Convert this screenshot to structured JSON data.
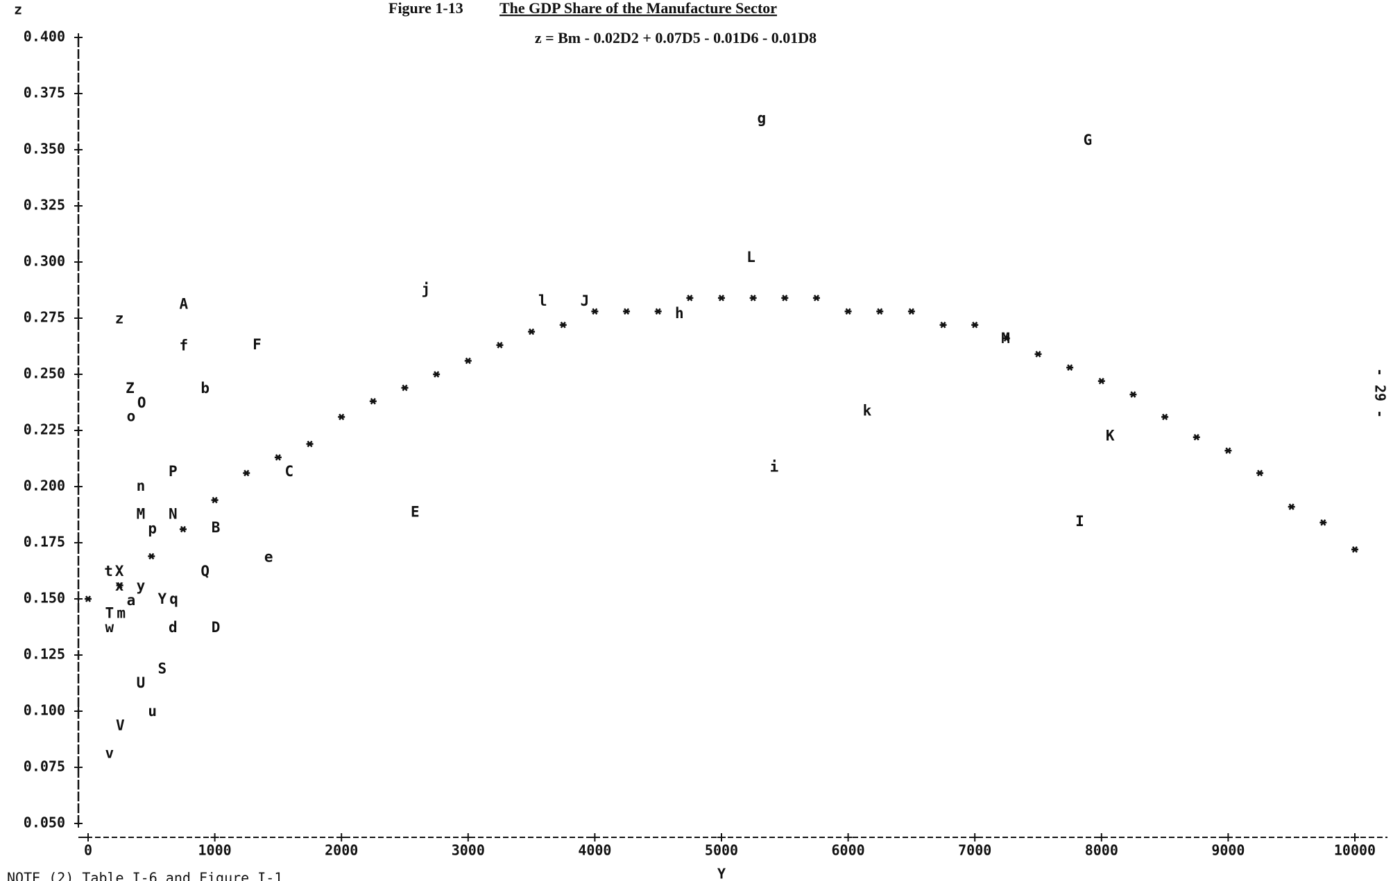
{
  "chart_data": {
    "type": "scatter",
    "figure_label": "Figure 1-13",
    "title": "The GDP Share of the Manufacture Sector",
    "subtitle": "z = Bm - 0.02D2 + 0.07D5 - 0.01D6 - 0.01D8",
    "ylabel": "z",
    "xlabel": "Y",
    "page_number": "- 29 -",
    "note": "NOTE (2) Table I-6 and Figure I-1",
    "xlim": [
      0,
      10000
    ],
    "xticks": [
      0,
      1000,
      2000,
      3000,
      4000,
      5000,
      6000,
      7000,
      8000,
      9000,
      10000
    ],
    "ylim": [
      0.05,
      0.4
    ],
    "yticks": [
      {
        "value": 0.05,
        "label": "0.050"
      },
      {
        "value": 0.075,
        "label": "0.075"
      },
      {
        "value": 0.1,
        "label": "0.100"
      },
      {
        "value": 0.125,
        "label": "0.125"
      },
      {
        "value": 0.15,
        "label": "0.150"
      },
      {
        "value": 0.175,
        "label": "0.175"
      },
      {
        "value": 0.2,
        "label": "0.200"
      },
      {
        "value": 0.225,
        "label": "0.225"
      },
      {
        "value": 0.25,
        "label": "0.250"
      },
      {
        "value": 0.275,
        "label": "0.275"
      },
      {
        "value": 0.3,
        "label": "0.300"
      },
      {
        "value": 0.325,
        "label": "0.325"
      },
      {
        "value": 0.35,
        "label": "0.350"
      },
      {
        "value": 0.375,
        "label": "0.375"
      },
      {
        "value": 0.4,
        "label": "0.400"
      }
    ],
    "points": {
      "labels": [
        "z",
        "A",
        "f",
        "F",
        "Z",
        "O",
        "b",
        "o",
        "P",
        "n",
        "M",
        "N",
        "p",
        "B",
        "Q",
        "t",
        "X",
        "x",
        "y",
        "a",
        "Y",
        "q",
        "T",
        "m",
        "w",
        "d",
        "D",
        "S",
        "U",
        "u",
        "V",
        "v",
        "e",
        "C",
        "E",
        "j",
        "l",
        "J",
        "h",
        "g",
        "L",
        "i",
        "k",
        "M",
        "G",
        "K",
        "I"
      ],
      "x": [
        247,
        755,
        755,
        1333,
        331,
        423,
        924,
        339,
        670,
        416,
        416,
        670,
        508,
        1008,
        924,
        162,
        247,
        247,
        416,
        339,
        585,
        677,
        169,
        261,
        169,
        670,
        1008,
        585,
        416,
        508,
        254,
        169,
        1425,
        1587,
        2581,
        2666,
        3589,
        3921,
        4668,
        5317,
        5233,
        5416,
        6150,
        7243,
        7891,
        8068,
        7828
      ],
      "y": [
        0.2745,
        0.281,
        0.2625,
        0.263,
        0.2435,
        0.237,
        0.2435,
        0.231,
        0.2065,
        0.2,
        0.1875,
        0.1875,
        0.181,
        0.1815,
        0.162,
        0.162,
        0.162,
        0.1555,
        0.1555,
        0.149,
        0.1497,
        0.1497,
        0.1433,
        0.1433,
        0.137,
        0.137,
        0.137,
        0.1187,
        0.1124,
        0.0997,
        0.0933,
        0.081,
        0.1684,
        0.2065,
        0.1885,
        0.2876,
        0.2824,
        0.2824,
        0.2768,
        0.3638,
        0.3019,
        0.2085,
        0.2335,
        0.2657,
        0.354,
        0.2224,
        0.1843
      ]
    },
    "curve": {
      "x": [
        0,
        250,
        500,
        750,
        1000,
        1250,
        1500,
        1750,
        2000,
        2250,
        2500,
        2750,
        3000,
        3250,
        3500,
        3750,
        4000,
        4250,
        4500,
        4750,
        5000,
        5250,
        5500,
        5750,
        6000,
        6250,
        6500,
        6750,
        7000,
        7250,
        7500,
        7750,
        8000,
        8250,
        8500,
        8750,
        9000,
        9250,
        9500,
        9750,
        10000
      ],
      "y": [
        0.15,
        0.156,
        0.169,
        0.181,
        0.194,
        0.206,
        0.213,
        0.219,
        0.231,
        0.238,
        0.244,
        0.25,
        0.256,
        0.263,
        0.269,
        0.272,
        0.278,
        0.278,
        0.278,
        0.284,
        0.284,
        0.284,
        0.284,
        0.284,
        0.278,
        0.278,
        0.278,
        0.272,
        0.272,
        0.266,
        0.259,
        0.253,
        0.247,
        0.241,
        0.231,
        0.222,
        0.216,
        0.206,
        0.191,
        0.184,
        0.172
      ]
    }
  }
}
